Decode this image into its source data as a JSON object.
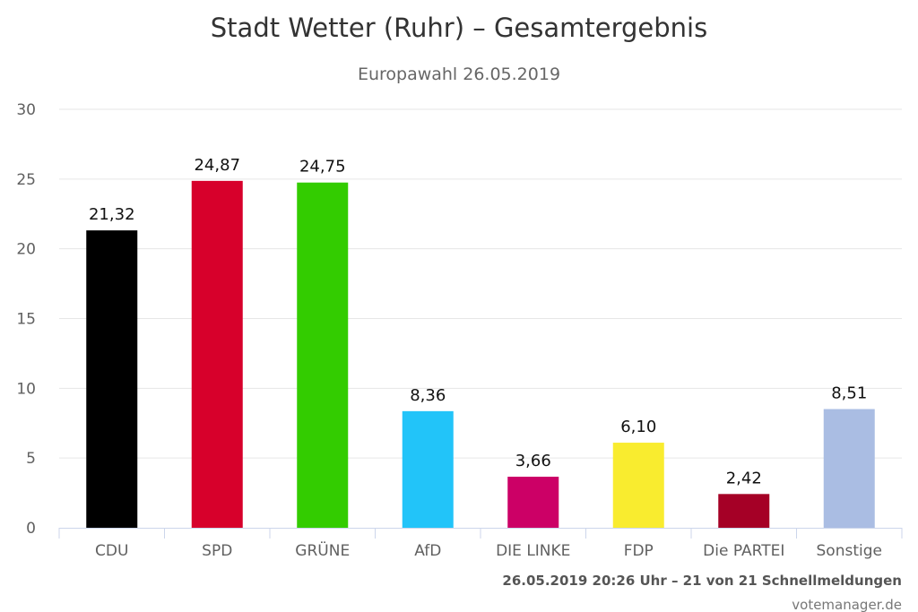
{
  "chart_data": {
    "type": "bar",
    "title": "Stadt Wetter (Ruhr) – Gesamtergebnis",
    "subtitle": "Europawahl 26.05.2019",
    "categories": [
      "CDU",
      "SPD",
      "GRÜNE",
      "AfD",
      "DIE LINKE",
      "FDP",
      "Die PARTEI",
      "Sonstige"
    ],
    "values": [
      21.32,
      24.87,
      24.75,
      8.36,
      3.66,
      6.1,
      2.42,
      8.51
    ],
    "value_labels": [
      "21,32",
      "24,87",
      "24,75",
      "8,36",
      "3,66",
      "6,10",
      "2,42",
      "8,51"
    ],
    "colors": [
      "#000000",
      "#d7002b",
      "#33cc00",
      "#22c4f9",
      "#cc0066",
      "#f9ec2f",
      "#a50026",
      "#aabde3"
    ],
    "ylim": [
      0,
      30
    ],
    "yticks": [
      0,
      5,
      10,
      15,
      20,
      25,
      30
    ],
    "grid": true,
    "legend": "none"
  },
  "footer": {
    "status": "26.05.2019 20:26 Uhr – 21 von 21 Schnellmeldungen",
    "source": "votemanager.de"
  }
}
